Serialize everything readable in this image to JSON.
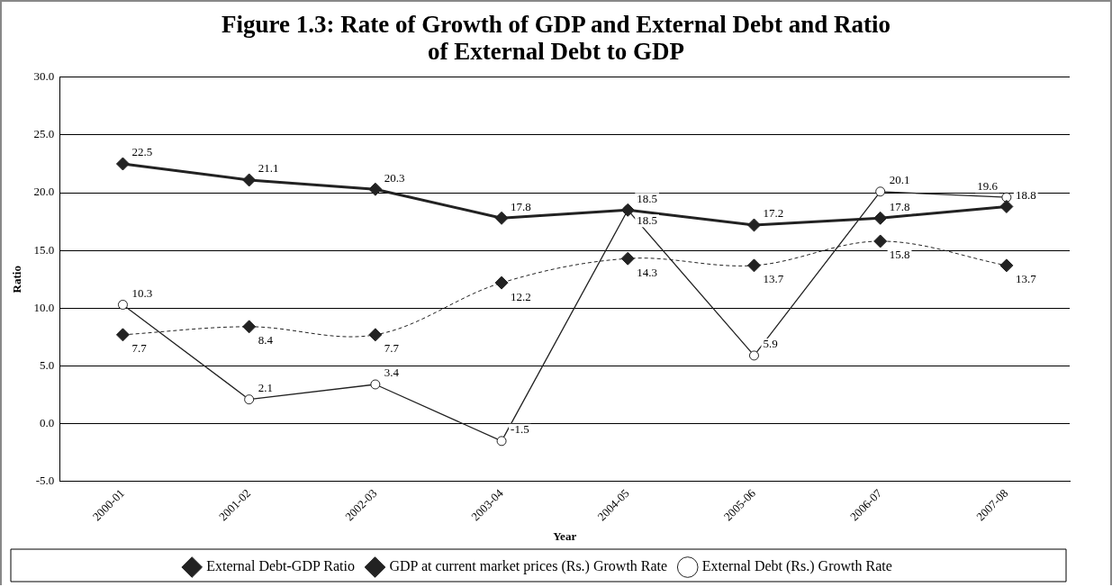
{
  "chart_data": {
    "type": "line",
    "title": "Figure 1.3: Rate of Growth of GDP and External Debt and Ratio of External Debt to GDP",
    "xlabel": "Year",
    "ylabel": "Ratio",
    "categories": [
      "2000-01",
      "2001-02",
      "2002-03",
      "2003-04",
      "2004-05",
      "2005-06",
      "2006-07",
      "2007-08"
    ],
    "series": [
      {
        "name": "External Debt-GDP Ratio",
        "color": "#222222",
        "marker": "diamond",
        "line_style": "solid",
        "values": [
          22.5,
          21.1,
          20.3,
          17.8,
          18.5,
          17.2,
          17.8,
          18.8
        ]
      },
      {
        "name": "GDP at current market prices (Rs.) Growth Rate",
        "color": "#222222",
        "marker": "diamond",
        "line_style": "dashed",
        "values": [
          7.7,
          8.4,
          7.7,
          12.2,
          14.3,
          13.7,
          15.8,
          13.7
        ]
      },
      {
        "name": "External Debt (Rs.) Growth Rate",
        "color": "#222222",
        "marker": "circle",
        "line_style": "solid",
        "values": [
          10.3,
          2.1,
          3.4,
          -1.5,
          18.5,
          5.9,
          20.1,
          19.6
        ]
      }
    ],
    "ylim": [
      -5,
      30
    ],
    "yticks": [
      {
        "value": -5,
        "label": "-5.0"
      },
      {
        "value": 0,
        "label": "0.0"
      },
      {
        "value": 5,
        "label": "5.0"
      },
      {
        "value": 10,
        "label": "10.0"
      },
      {
        "value": 15,
        "label": "15.0"
      },
      {
        "value": 20,
        "label": "20.0"
      },
      {
        "value": 25,
        "label": "25.0"
      },
      {
        "value": 30,
        "label": "30.0"
      }
    ],
    "grid": "y",
    "legend": "bottom",
    "data_labels": true
  }
}
